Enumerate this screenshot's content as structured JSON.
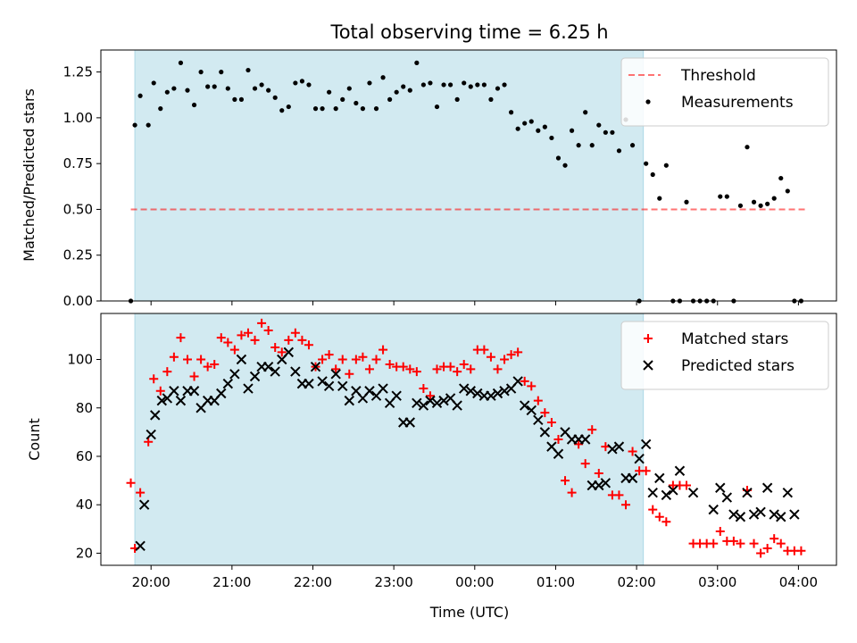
{
  "title": "Total observing time = 6.25 h",
  "xlabel": "Time (UTC)",
  "colors": {
    "observing_window": "#add8e6",
    "threshold": "#ff0000",
    "measurements": "#000000",
    "matched": "#ff0000",
    "predicted": "#000000"
  },
  "chart_data": [
    {
      "type": "scatter",
      "panel": "top",
      "ylabel": "Matched/Predicted stars",
      "ylim": [
        0,
        1.37
      ],
      "yticks": [
        "0.00",
        "0.25",
        "0.50",
        "0.75",
        "1.00",
        "1.25"
      ],
      "xticks": [
        "20:00",
        "21:00",
        "22:00",
        "23:00",
        "00:00",
        "01:00",
        "02:00",
        "03:00",
        "04:00"
      ],
      "x_range_hours": [
        19.38,
        24.0,
        28.47
      ],
      "legend_position": "top-right",
      "observing_window": {
        "start": "19:48",
        "end": "02:05"
      },
      "threshold": {
        "name": "Threshold",
        "value": 0.5,
        "from": "19:45",
        "to": "04:05"
      },
      "series": [
        {
          "name": "Measurements",
          "x": [
            "19:45",
            "19:48",
            "19:52",
            "19:58",
            "20:02",
            "20:07",
            "20:12",
            "20:17",
            "20:22",
            "20:27",
            "20:32",
            "20:37",
            "20:42",
            "20:47",
            "20:52",
            "20:57",
            "21:02",
            "21:07",
            "21:12",
            "21:17",
            "21:22",
            "21:27",
            "21:32",
            "21:37",
            "21:42",
            "21:47",
            "21:52",
            "21:57",
            "22:02",
            "22:07",
            "22:12",
            "22:17",
            "22:22",
            "22:27",
            "22:32",
            "22:37",
            "22:42",
            "22:47",
            "22:52",
            "22:57",
            "23:02",
            "23:07",
            "23:12",
            "23:17",
            "23:22",
            "23:27",
            "23:32",
            "23:37",
            "23:42",
            "23:47",
            "23:52",
            "23:57",
            "00:02",
            "00:07",
            "00:12",
            "00:17",
            "00:22",
            "00:27",
            "00:32",
            "00:37",
            "00:42",
            "00:47",
            "00:52",
            "00:57",
            "01:02",
            "01:07",
            "01:12",
            "01:17",
            "01:22",
            "01:27",
            "01:32",
            "01:37",
            "01:42",
            "01:47",
            "01:52",
            "01:57",
            "02:02",
            "02:07",
            "02:12",
            "02:17",
            "02:22",
            "02:27",
            "02:32",
            "02:37",
            "02:42",
            "02:47",
            "02:52",
            "02:57",
            "03:02",
            "03:07",
            "03:12",
            "03:17",
            "03:22",
            "03:27",
            "03:32",
            "03:37",
            "03:42",
            "03:47",
            "03:52",
            "03:57",
            "04:02"
          ],
          "y": [
            0.0,
            0.96,
            1.12,
            0.96,
            1.19,
            1.05,
            1.14,
            1.16,
            1.3,
            1.15,
            1.07,
            1.25,
            1.17,
            1.17,
            1.25,
            1.16,
            1.1,
            1.1,
            1.26,
            1.16,
            1.18,
            1.15,
            1.11,
            1.04,
            1.06,
            1.19,
            1.2,
            1.18,
            1.05,
            1.05,
            1.14,
            1.05,
            1.1,
            1.16,
            1.08,
            1.05,
            1.19,
            1.05,
            1.22,
            1.1,
            1.14,
            1.17,
            1.15,
            1.3,
            1.18,
            1.19,
            1.06,
            1.18,
            1.18,
            1.1,
            1.19,
            1.17,
            1.18,
            1.18,
            1.1,
            1.16,
            1.18,
            1.03,
            0.94,
            0.97,
            0.98,
            0.93,
            0.95,
            0.89,
            0.78,
            0.74,
            0.93,
            0.85,
            1.03,
            0.85,
            0.96,
            0.92,
            0.92,
            0.82,
            0.99,
            0.85,
            0.0,
            0.75,
            0.69,
            0.56,
            0.74,
            0.0,
            0.0,
            0.54,
            0.0,
            0.0,
            0.0,
            0.0,
            0.57,
            0.57,
            0.0,
            0.52,
            0.84,
            0.54,
            0.52,
            0.53,
            0.56,
            0.67,
            0.6,
            0.0,
            0.0
          ]
        }
      ]
    },
    {
      "type": "scatter",
      "panel": "bottom",
      "ylabel": "Count",
      "ylim": [
        15,
        119
      ],
      "yticks": [
        "20",
        "40",
        "60",
        "80",
        "100"
      ],
      "xticks": [
        "20:00",
        "21:00",
        "22:00",
        "23:00",
        "00:00",
        "01:00",
        "02:00",
        "03:00",
        "04:00"
      ],
      "x_range_hours": [
        19.38,
        24.0,
        28.47
      ],
      "legend_position": "top-right",
      "observing_window": {
        "start": "19:48",
        "end": "02:05"
      },
      "series": [
        {
          "name": "Matched stars",
          "marker": "+",
          "x": [
            "19:45",
            "19:48",
            "19:52",
            "19:58",
            "20:02",
            "20:07",
            "20:12",
            "20:17",
            "20:22",
            "20:27",
            "20:32",
            "20:37",
            "20:42",
            "20:47",
            "20:52",
            "20:57",
            "21:02",
            "21:07",
            "21:12",
            "21:17",
            "21:22",
            "21:27",
            "21:32",
            "21:37",
            "21:42",
            "21:47",
            "21:52",
            "21:57",
            "22:02",
            "22:07",
            "22:12",
            "22:17",
            "22:22",
            "22:27",
            "22:32",
            "22:37",
            "22:42",
            "22:47",
            "22:52",
            "22:57",
            "23:02",
            "23:07",
            "23:12",
            "23:17",
            "23:22",
            "23:27",
            "23:32",
            "23:37",
            "23:42",
            "23:47",
            "23:52",
            "23:57",
            "00:02",
            "00:07",
            "00:12",
            "00:17",
            "00:22",
            "00:27",
            "00:32",
            "00:37",
            "00:42",
            "00:47",
            "00:52",
            "00:57",
            "01:02",
            "01:07",
            "01:12",
            "01:17",
            "01:22",
            "01:27",
            "01:32",
            "01:37",
            "01:42",
            "01:47",
            "01:52",
            "01:57",
            "02:02",
            "02:07",
            "02:12",
            "02:17",
            "02:22",
            "02:27",
            "02:32",
            "02:37",
            "02:42",
            "02:47",
            "02:52",
            "02:57",
            "03:02",
            "03:07",
            "03:12",
            "03:17",
            "03:22",
            "03:27",
            "03:32",
            "03:37",
            "03:42",
            "03:47",
            "03:52",
            "03:57",
            "04:02"
          ],
          "y": [
            49,
            22,
            45,
            66,
            92,
            87,
            95,
            101,
            109,
            100,
            93,
            100,
            97,
            98,
            109,
            107,
            104,
            110,
            111,
            108,
            115,
            112,
            105,
            103,
            108,
            111,
            108,
            106,
            97,
            100,
            102,
            96,
            100,
            94,
            100,
            101,
            96,
            100,
            104,
            98,
            97,
            97,
            96,
            95,
            88,
            85,
            96,
            97,
            97,
            95,
            98,
            96,
            104,
            104,
            101,
            96,
            100,
            102,
            103,
            91,
            89,
            83,
            78,
            74,
            67,
            50,
            45,
            65,
            57,
            71,
            53,
            64,
            44,
            44,
            40,
            62,
            54,
            54,
            38,
            35,
            33,
            48,
            48,
            48,
            24,
            24,
            24,
            24,
            29,
            25,
            25,
            24,
            46,
            24,
            20,
            22,
            26,
            24,
            21,
            21,
            21
          ]
        },
        {
          "name": "Predicted stars",
          "marker": "x",
          "x": [
            "19:52",
            "19:55",
            "20:00",
            "20:03",
            "20:08",
            "20:12",
            "20:17",
            "20:22",
            "20:27",
            "20:32",
            "20:37",
            "20:42",
            "20:47",
            "20:52",
            "20:57",
            "21:02",
            "21:07",
            "21:12",
            "21:17",
            "21:22",
            "21:27",
            "21:32",
            "21:37",
            "21:42",
            "21:47",
            "21:52",
            "21:57",
            "22:02",
            "22:07",
            "22:12",
            "22:17",
            "22:22",
            "22:27",
            "22:32",
            "22:37",
            "22:42",
            "22:47",
            "22:52",
            "22:57",
            "23:02",
            "23:07",
            "23:12",
            "23:17",
            "23:22",
            "23:27",
            "23:32",
            "23:37",
            "23:42",
            "23:47",
            "23:52",
            "23:57",
            "00:02",
            "00:07",
            "00:12",
            "00:17",
            "00:22",
            "00:27",
            "00:32",
            "00:37",
            "00:42",
            "00:47",
            "00:52",
            "00:57",
            "01:02",
            "01:07",
            "01:12",
            "01:17",
            "01:22",
            "01:27",
            "01:32",
            "01:37",
            "01:42",
            "01:47",
            "01:52",
            "01:57",
            "02:02",
            "02:07",
            "02:12",
            "02:17",
            "02:22",
            "02:27",
            "02:32",
            "02:42",
            "02:57",
            "03:02",
            "03:07",
            "03:12",
            "03:17",
            "03:22",
            "03:27",
            "03:32",
            "03:37",
            "03:42",
            "03:47",
            "03:52",
            "03:57"
          ],
          "y": [
            23,
            40,
            69,
            77,
            83,
            84,
            87,
            83,
            87,
            87,
            80,
            83,
            83,
            86,
            90,
            94,
            100,
            88,
            93,
            97,
            97,
            95,
            100,
            103,
            95,
            90,
            90,
            97,
            91,
            89,
            94,
            89,
            83,
            87,
            84,
            87,
            85,
            88,
            82,
            85,
            74,
            74,
            82,
            81,
            83,
            82,
            83,
            84,
            81,
            88,
            87,
            86,
            85,
            85,
            86,
            87,
            88,
            91,
            81,
            79,
            75,
            70,
            64,
            61,
            70,
            67,
            67,
            67,
            48,
            48,
            49,
            63,
            64,
            51,
            51,
            59,
            65,
            45,
            51,
            44,
            46,
            54,
            45,
            38,
            47,
            43,
            36,
            35,
            45,
            36,
            37,
            47,
            36,
            35,
            45,
            36
          ]
        }
      ]
    }
  ]
}
